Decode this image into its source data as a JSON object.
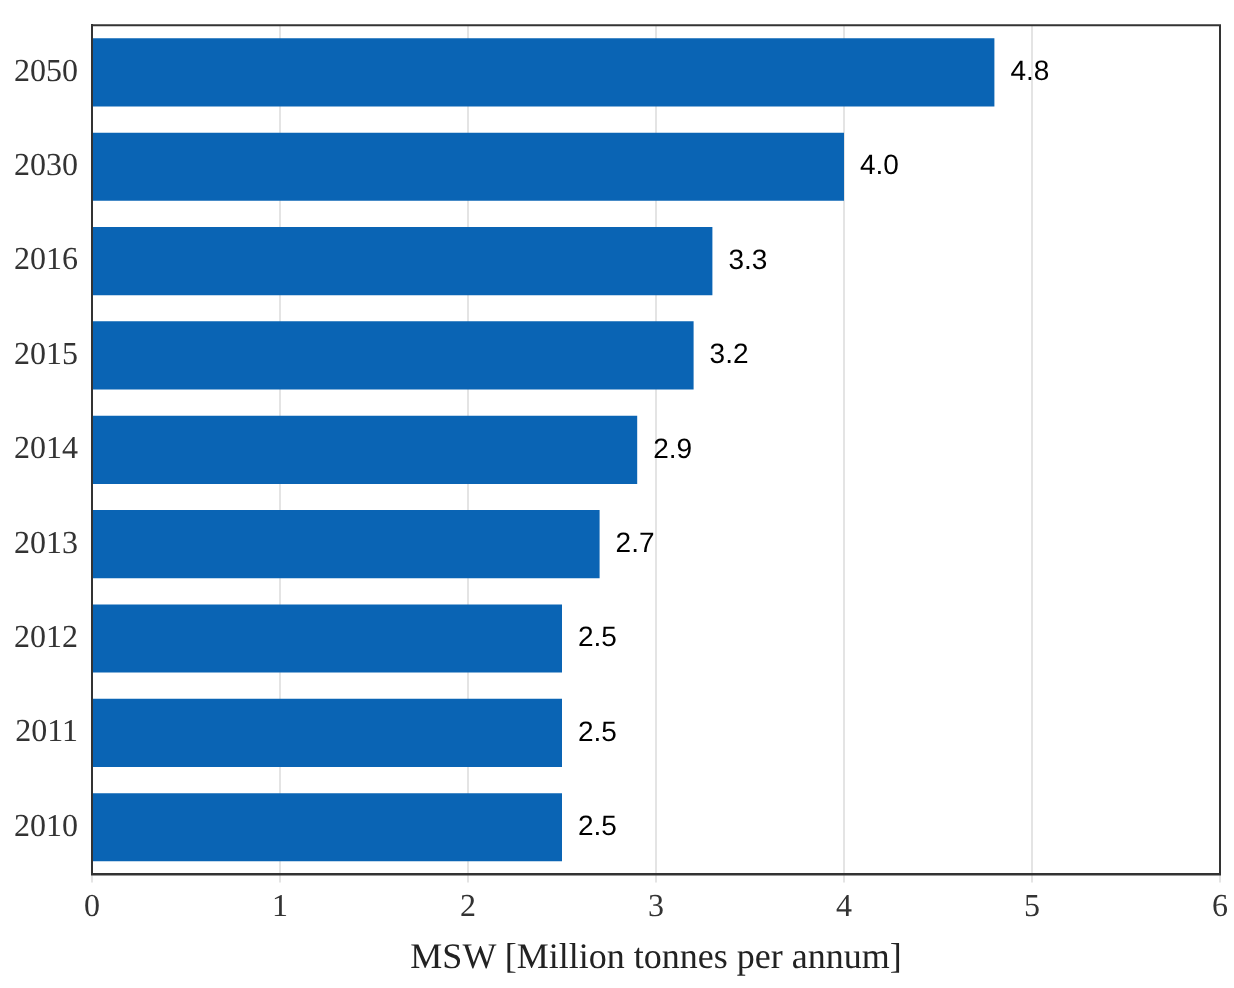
{
  "chart_data": {
    "type": "bar",
    "orientation": "horizontal",
    "xlabel": "MSW [Million tonnes per annum]",
    "categories": [
      "2050",
      "2030",
      "2016",
      "2015",
      "2014",
      "2013",
      "2012",
      "2011",
      "2010"
    ],
    "values": [
      4.8,
      4.0,
      3.3,
      3.2,
      2.9,
      2.7,
      2.5,
      2.5,
      2.5
    ],
    "value_labels": [
      "4.8",
      "4.0",
      "3.3",
      "3.2",
      "2.9",
      "2.7",
      "2.5",
      "2.5",
      "2.5"
    ],
    "color": "#0a64b4",
    "xlim": [
      0,
      6
    ],
    "xticks": [
      0,
      1,
      2,
      3,
      4,
      5,
      6
    ],
    "grid": "x",
    "legend": false
  }
}
